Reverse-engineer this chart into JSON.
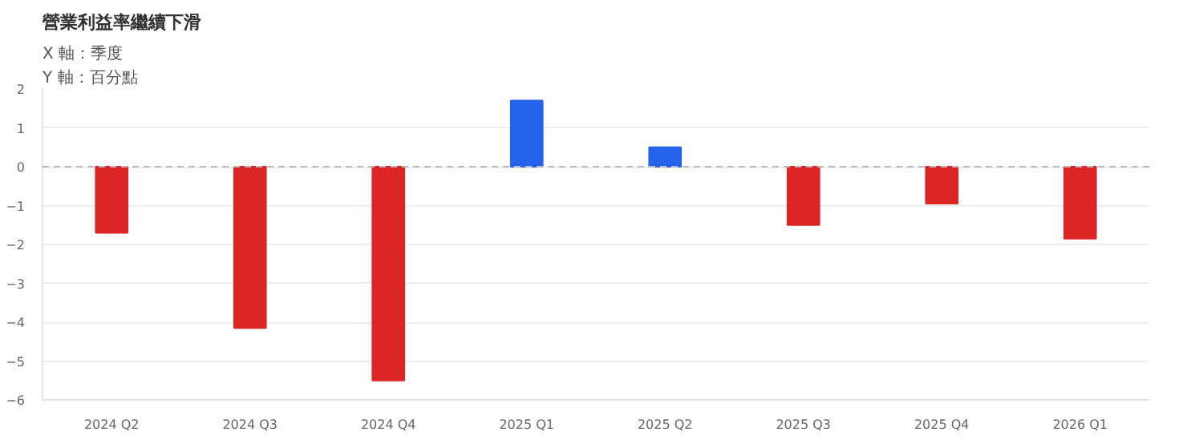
{
  "chart_data": {
    "type": "bar",
    "title": "營業利益率繼續下滑",
    "annotations": [
      "X 軸：季度",
      "Y 軸：百分點"
    ],
    "categories": [
      "2024 Q2",
      "2024 Q3",
      "2024 Q4",
      "2025 Q1",
      "2025 Q2",
      "2025 Q3",
      "2025 Q4",
      "2026 Q1"
    ],
    "values": [
      -1.7,
      -4.15,
      -5.5,
      1.7,
      0.5,
      -1.5,
      -0.95,
      -1.85
    ],
    "colors": [
      "#dc2626",
      "#dc2626",
      "#dc2626",
      "#2563eb",
      "#2563eb",
      "#dc2626",
      "#dc2626",
      "#dc2626"
    ],
    "ylim": [
      -6,
      2
    ],
    "yticks": [
      -6,
      -5,
      -4,
      -3,
      -2,
      -1,
      0,
      1,
      2
    ],
    "grid": "y",
    "ref_lines": [
      {
        "axis": "y",
        "value": 0,
        "label": null,
        "color": "#bbbbbb",
        "line_style": "dashed"
      }
    ]
  }
}
